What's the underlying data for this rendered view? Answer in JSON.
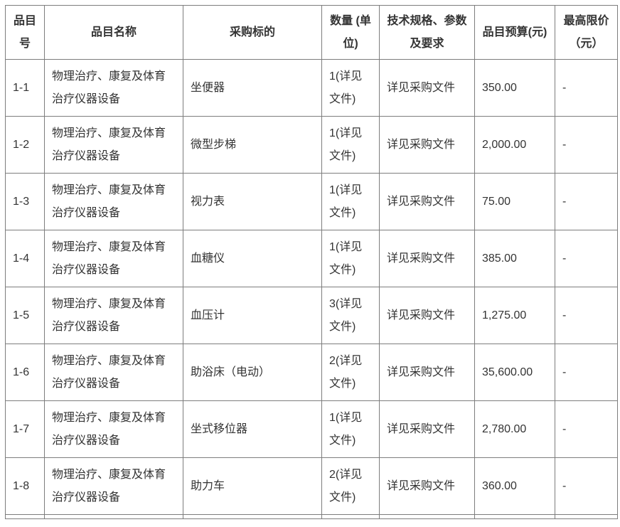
{
  "colors": {
    "background": "#ffffff",
    "border": "#7d7d7d",
    "text": "#333333"
  },
  "table": {
    "headers": {
      "item_no": "品目号",
      "item_name": "品目名称",
      "target": "采购标的",
      "quantity": "数量 (单位)",
      "spec": "技术规格、参数及要求",
      "budget": "品目预算(元)",
      "max_price": "最高限价（元）"
    },
    "rows": [
      {
        "no": "1-1",
        "name": "物理治疗、康复及体育治疗仪器设备",
        "target": "坐便器",
        "qty": "1(详见文件)",
        "spec": "详见采购文件",
        "budget": "350.00",
        "max": "-"
      },
      {
        "no": "1-2",
        "name": "物理治疗、康复及体育治疗仪器设备",
        "target": "微型步梯",
        "qty": "1(详见文件)",
        "spec": "详见采购文件",
        "budget": "2,000.00",
        "max": "-"
      },
      {
        "no": "1-3",
        "name": "物理治疗、康复及体育治疗仪器设备",
        "target": "视力表",
        "qty": "1(详见文件)",
        "spec": "详见采购文件",
        "budget": "75.00",
        "max": "-"
      },
      {
        "no": "1-4",
        "name": "物理治疗、康复及体育治疗仪器设备",
        "target": "血糖仪",
        "qty": "1(详见文件)",
        "spec": "详见采购文件",
        "budget": "385.00",
        "max": "-"
      },
      {
        "no": "1-5",
        "name": "物理治疗、康复及体育治疗仪器设备",
        "target": "血压计",
        "qty": "3(详见文件)",
        "spec": "详见采购文件",
        "budget": "1,275.00",
        "max": "-"
      },
      {
        "no": "1-6",
        "name": "物理治疗、康复及体育治疗仪器设备",
        "target": "助浴床（电动）",
        "qty": "2(详见文件)",
        "spec": "详见采购文件",
        "budget": "35,600.00",
        "max": "-"
      },
      {
        "no": "1-7",
        "name": "物理治疗、康复及体育治疗仪器设备",
        "target": "坐式移位器",
        "qty": "1(详见文件)",
        "spec": "详见采购文件",
        "budget": "2,780.00",
        "max": "-"
      },
      {
        "no": "1-8",
        "name": "物理治疗、康复及体育治疗仪器设备",
        "target": "助力车",
        "qty": "2(详见文件)",
        "spec": "详见采购文件",
        "budget": "360.00",
        "max": "-"
      }
    ]
  }
}
